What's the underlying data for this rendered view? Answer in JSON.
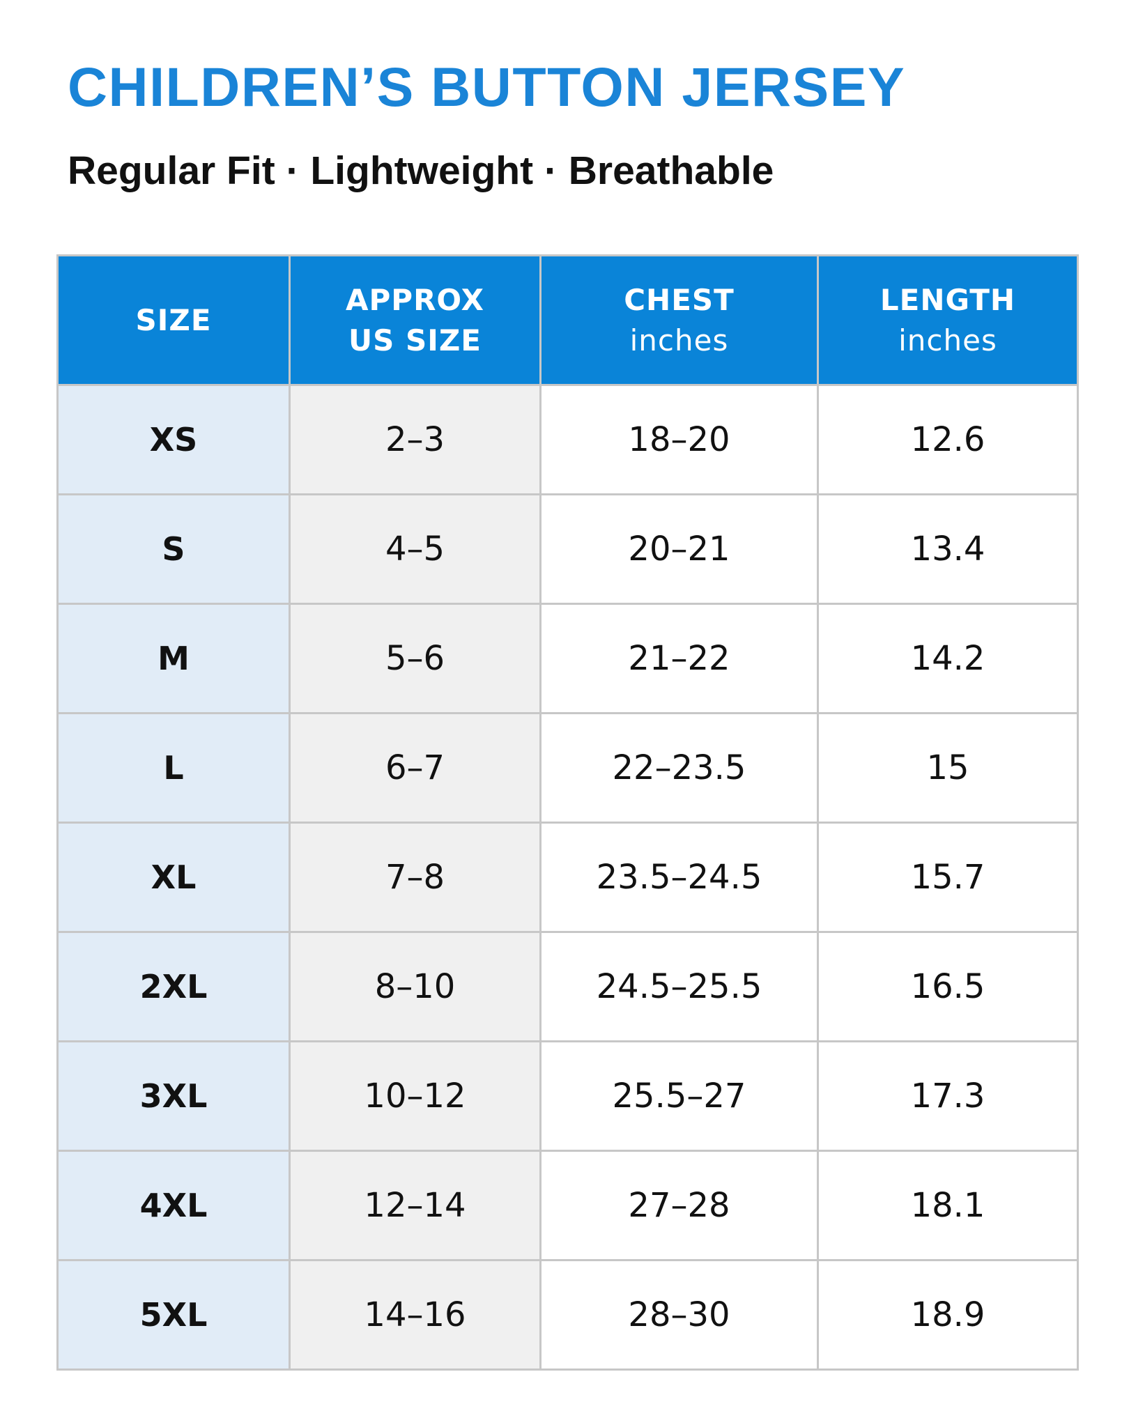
{
  "title": "CHILDREN’S BUTTON JERSEY",
  "subtitle": "Regular Fit · Lightweight · Breathable",
  "colors": {
    "title": "#1a84d7",
    "header_background": "#0a84d8",
    "header_text": "#ffffff",
    "size_column_background": "#e1ecf7",
    "us_size_column_background": "#f0f0f0",
    "grid_lines": "#c7c7c7"
  },
  "table": {
    "headers": [
      {
        "main": "SIZE",
        "line2": ""
      },
      {
        "main": "APPROX",
        "line2": "US SIZE"
      },
      {
        "main": "CHEST",
        "line2": "inches"
      },
      {
        "main": "LENGTH",
        "line2": "inches"
      }
    ],
    "rows": [
      {
        "size": "XS",
        "us_size": "2–3",
        "chest": "18–20",
        "length": "12.6"
      },
      {
        "size": "S",
        "us_size": "4–5",
        "chest": "20–21",
        "length": "13.4"
      },
      {
        "size": "M",
        "us_size": "5–6",
        "chest": "21–22",
        "length": "14.2"
      },
      {
        "size": "L",
        "us_size": "6–7",
        "chest": "22–23.5",
        "length": "15"
      },
      {
        "size": "XL",
        "us_size": "7–8",
        "chest": "23.5–24.5",
        "length": "15.7"
      },
      {
        "size": "2XL",
        "us_size": "8–10",
        "chest": "24.5–25.5",
        "length": "16.5"
      },
      {
        "size": "3XL",
        "us_size": "10–12",
        "chest": "25.5–27",
        "length": "17.3"
      },
      {
        "size": "4XL",
        "us_size": "12–14",
        "chest": "27–28",
        "length": "18.1"
      },
      {
        "size": "5XL",
        "us_size": "14–16",
        "chest": "28–30",
        "length": "18.9"
      }
    ]
  }
}
